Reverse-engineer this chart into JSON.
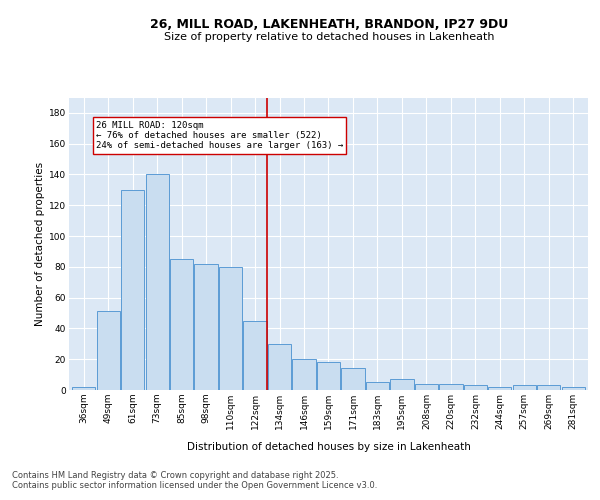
{
  "title": "26, MILL ROAD, LAKENHEATH, BRANDON, IP27 9DU",
  "subtitle": "Size of property relative to detached houses in Lakenheath",
  "xlabel": "Distribution of detached houses by size in Lakenheath",
  "ylabel": "Number of detached properties",
  "categories": [
    "36sqm",
    "49sqm",
    "61sqm",
    "73sqm",
    "85sqm",
    "98sqm",
    "110sqm",
    "122sqm",
    "134sqm",
    "146sqm",
    "159sqm",
    "171sqm",
    "183sqm",
    "195sqm",
    "208sqm",
    "220sqm",
    "232sqm",
    "244sqm",
    "257sqm",
    "269sqm",
    "281sqm"
  ],
  "values": [
    2,
    51,
    130,
    140,
    85,
    82,
    80,
    45,
    30,
    20,
    18,
    14,
    5,
    7,
    4,
    4,
    3,
    2,
    3,
    3,
    2
  ],
  "bar_color": "#c9ddf0",
  "bar_edge_color": "#5b9bd5",
  "vline_color": "#cc0000",
  "vline_index": 7.5,
  "annotation_text": "26 MILL ROAD: 120sqm\n← 76% of detached houses are smaller (522)\n24% of semi-detached houses are larger (163) →",
  "annotation_box_facecolor": "#ffffff",
  "annotation_box_edgecolor": "#cc0000",
  "ylim": [
    0,
    190
  ],
  "yticks": [
    0,
    20,
    40,
    60,
    80,
    100,
    120,
    140,
    160,
    180
  ],
  "footer1": "Contains HM Land Registry data © Crown copyright and database right 2025.",
  "footer2": "Contains public sector information licensed under the Open Government Licence v3.0.",
  "plot_bg_color": "#dce8f5",
  "fig_bg_color": "#ffffff",
  "title_fontsize": 9,
  "subtitle_fontsize": 8,
  "ylabel_fontsize": 7.5,
  "xlabel_fontsize": 7.5,
  "tick_fontsize": 6.5,
  "annotation_fontsize": 6.5,
  "footer_fontsize": 6
}
